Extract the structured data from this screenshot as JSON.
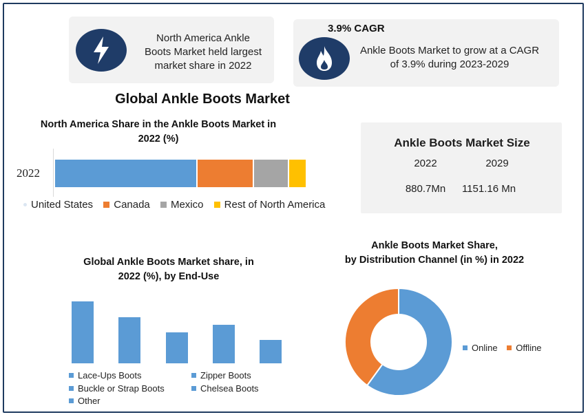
{
  "cards": {
    "left_text": [
      "North America Ankle",
      "Boots Market held largest",
      "market share in 2022"
    ],
    "right_title": "3.9% CAGR",
    "right_text": [
      "Ankle Boots Market to grow at a CAGR",
      "of 3.9% during 2023-2029"
    ]
  },
  "icons": {
    "left": "lightning-icon",
    "right": "flame-icon"
  },
  "main_title": "Global Ankle Boots Market",
  "market_size": {
    "title": "Ankle Boots Market Size",
    "years": [
      "2022",
      "2029"
    ],
    "values": [
      "880.7Mn",
      "1151.16 Mn"
    ]
  },
  "colors": {
    "blue": "#5b9bd5",
    "orange": "#ed7d31",
    "gray": "#a5a5a5",
    "yellow": "#ffc000",
    "navy": "#1f3c68",
    "card": "#f2f2f2"
  },
  "chart_data": [
    {
      "type": "bar",
      "orientation": "horizontal-stacked",
      "title": [
        "North America Share in the Ankle Boots Market in",
        "2022 (%)"
      ],
      "categories": [
        "2022"
      ],
      "series": [
        {
          "name": "United States",
          "values": [
            56
          ],
          "color": "#5b9bd5"
        },
        {
          "name": "Canada",
          "values": [
            22
          ],
          "color": "#ed7d31"
        },
        {
          "name": "Mexico",
          "values": [
            14
          ],
          "color": "#a5a5a5"
        },
        {
          "name": "Rest of North America",
          "values": [
            7
          ],
          "color": "#ffc000"
        }
      ],
      "legend_position": "bottom"
    },
    {
      "type": "bar",
      "title": [
        "Global Ankle Boots Market share, in",
        "2022 (%), by End-Use"
      ],
      "categories": [
        "Lace-Ups Boots",
        "Zipper Boots",
        "Buckle or Strap Boots",
        "Chelsea Boots",
        "Other"
      ],
      "values": [
        32,
        24,
        16,
        20,
        12
      ],
      "color": "#5b9bd5",
      "legend_position": "bottom"
    },
    {
      "type": "pie",
      "variant": "donut",
      "title": [
        "Ankle Boots Market Share,",
        "by Distribution Channel (in %) in 2022"
      ],
      "categories": [
        "Online",
        "Offline"
      ],
      "values": [
        60,
        40
      ],
      "colors": [
        "#5b9bd5",
        "#ed7d31"
      ],
      "legend_position": "right"
    }
  ]
}
